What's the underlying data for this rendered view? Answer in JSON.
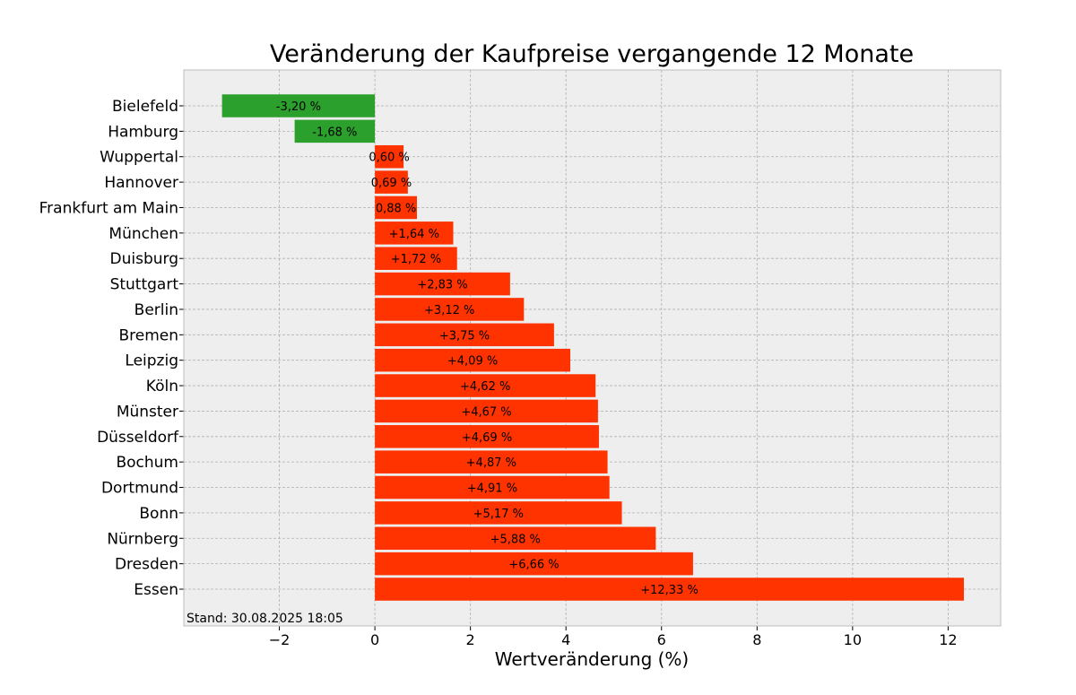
{
  "chart_data": {
    "type": "bar",
    "orientation": "horizontal",
    "title": "Veränderung der Kaufpreise vergangende 12 Monate",
    "xlabel": "Wertveränderung (%)",
    "ylabel": "",
    "xlim": [
      -4,
      13.1
    ],
    "xticks": [
      -2,
      0,
      2,
      4,
      6,
      8,
      10,
      12
    ],
    "xtick_labels": [
      "−2",
      "0",
      "2",
      "4",
      "6",
      "8",
      "10",
      "12"
    ],
    "grid": true,
    "categories": [
      "Bielefeld",
      "Hamburg",
      "Wuppertal",
      "Hannover",
      "Frankfurt am Main",
      "München",
      "Duisburg",
      "Stuttgart",
      "Berlin",
      "Bremen",
      "Leipzig",
      "Köln",
      "Münster",
      "Düsseldorf",
      "Bochum",
      "Dortmund",
      "Bonn",
      "Nürnberg",
      "Dresden",
      "Essen"
    ],
    "values": [
      -3.2,
      -1.68,
      0.6,
      0.69,
      0.88,
      1.64,
      1.72,
      2.83,
      3.12,
      3.75,
      4.09,
      4.62,
      4.67,
      4.69,
      4.87,
      4.91,
      5.17,
      5.88,
      6.66,
      12.33
    ],
    "value_labels": [
      "-3,20 %",
      "-1,68 %",
      "0,60 %",
      "0,69 %",
      "0,88 %",
      "+1,64 %",
      "+1,72 %",
      "+2,83 %",
      "+3,12 %",
      "+3,75 %",
      "+4,09 %",
      "+4,62 %",
      "+4,67 %",
      "+4,69 %",
      "+4,87 %",
      "+4,91 %",
      "+5,17 %",
      "+5,88 %",
      "+6,66 %",
      "+12,33 %"
    ],
    "colors": {
      "negative": "#2ca02c",
      "positive": "#ff3300",
      "background": "#eeeeee"
    },
    "footnote": "Stand: 30.08.2025 18:05"
  }
}
